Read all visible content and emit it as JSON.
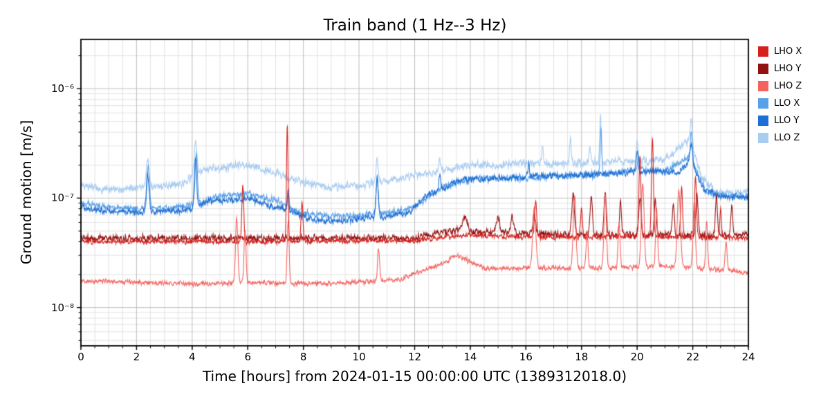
{
  "chart_data": {
    "type": "line",
    "title": "Train band (1 Hz--3 Hz)",
    "xlabel": "Time [hours] from 2024-01-15 00:00:00 UTC (1389312018.0)",
    "ylabel": "Ground motion [m/s]",
    "xlim": [
      0,
      24
    ],
    "ylog": [
      -8.35,
      -5.55
    ],
    "x_ticks": [
      0,
      2,
      4,
      6,
      8,
      10,
      12,
      14,
      16,
      18,
      20,
      22,
      24
    ],
    "x_minor_step": 0.5,
    "y_ticks": [
      {
        "v": 1e-06,
        "label": "10⁻⁶"
      },
      {
        "v": 1e-07,
        "label": "10⁻⁷"
      },
      {
        "v": 1e-08,
        "label": "10⁻⁸"
      }
    ],
    "grid": true,
    "legend_position": "outside-upper-right",
    "draw_order": [
      5,
      3,
      4,
      1,
      0,
      2
    ],
    "series": [
      {
        "name": "LHO X",
        "color": "#d6201c",
        "noise": 0.03,
        "base": [
          [
            0,
            4e-08
          ],
          [
            6,
            4e-08
          ],
          [
            12,
            4.1e-08
          ],
          [
            14,
            4.6e-08
          ],
          [
            16,
            4.4e-08
          ],
          [
            18,
            4.4e-08
          ],
          [
            20,
            4.5e-08
          ],
          [
            22,
            4.4e-08
          ],
          [
            24,
            4.3e-08
          ]
        ],
        "spikes": [
          [
            5.82,
            1.3e-07,
            0.05
          ],
          [
            7.42,
            4.6e-07,
            0.04
          ],
          [
            7.95,
            9e-08,
            0.05
          ],
          [
            16.35,
            9e-08,
            0.06
          ],
          [
            18.0,
            8e-08,
            0.05
          ],
          [
            20.1,
            2.4e-07,
            0.05
          ],
          [
            20.55,
            3.6e-07,
            0.05
          ],
          [
            21.6,
            1.2e-07,
            0.05
          ],
          [
            22.1,
            1.6e-07,
            0.05
          ],
          [
            23.0,
            8e-08,
            0.04
          ]
        ]
      },
      {
        "name": "LHO Y",
        "color": "#951010",
        "noise": 0.045,
        "base": [
          [
            0,
            4.3e-08
          ],
          [
            12,
            4.3e-08
          ],
          [
            13.6,
            5.2e-08
          ],
          [
            14.5,
            4.8e-08
          ],
          [
            16,
            4.8e-08
          ],
          [
            17,
            4.6e-08
          ],
          [
            24,
            4.6e-08
          ]
        ],
        "spikes": [
          [
            13.8,
            7e-08,
            0.1
          ],
          [
            15.0,
            6.5e-08,
            0.08
          ],
          [
            15.5,
            6.8e-08,
            0.07
          ],
          [
            16.3,
            7.5e-08,
            0.06
          ],
          [
            17.7,
            1.1e-07,
            0.07
          ],
          [
            18.35,
            1.05e-07,
            0.06
          ],
          [
            18.85,
            1.15e-07,
            0.06
          ],
          [
            19.4,
            9e-08,
            0.05
          ],
          [
            20.1,
            1e-07,
            0.06
          ],
          [
            20.65,
            9.5e-08,
            0.05
          ],
          [
            21.3,
            9e-08,
            0.05
          ],
          [
            22.15,
            1.05e-07,
            0.06
          ],
          [
            22.85,
            1e-07,
            0.05
          ],
          [
            23.4,
            8.5e-08,
            0.05
          ]
        ]
      },
      {
        "name": "LHO Z",
        "color": "#f4635f",
        "noise": 0.03,
        "base": [
          [
            0,
            1.75e-08
          ],
          [
            2,
            1.7e-08
          ],
          [
            4,
            1.65e-08
          ],
          [
            6,
            1.7e-08
          ],
          [
            8,
            1.65e-08
          ],
          [
            10,
            1.7e-08
          ],
          [
            11.5,
            1.8e-08
          ],
          [
            12.3,
            2.2e-08
          ],
          [
            13.0,
            2.5e-08
          ],
          [
            13.5,
            3e-08
          ],
          [
            14.0,
            2.6e-08
          ],
          [
            14.5,
            2.3e-08
          ],
          [
            15.5,
            2.3e-08
          ],
          [
            17,
            2.3e-08
          ],
          [
            19,
            2.3e-08
          ],
          [
            21,
            2.4e-08
          ],
          [
            23,
            2.2e-08
          ],
          [
            24,
            2.1e-08
          ]
        ],
        "spikes": [
          [
            5.6,
            6.5e-08,
            0.06
          ],
          [
            5.9,
            5e-08,
            0.05
          ],
          [
            7.45,
            6e-08,
            0.05
          ],
          [
            10.7,
            3.5e-08,
            0.05
          ],
          [
            16.3,
            8e-08,
            0.08
          ],
          [
            17.75,
            1.05e-07,
            0.07
          ],
          [
            18.2,
            5e-08,
            0.05
          ],
          [
            18.85,
            1.1e-07,
            0.06
          ],
          [
            19.35,
            6e-08,
            0.05
          ],
          [
            20.2,
            1.4e-07,
            0.07
          ],
          [
            20.7,
            8e-08,
            0.05
          ],
          [
            21.5,
            1.2e-07,
            0.08
          ],
          [
            22.05,
            9e-08,
            0.06
          ],
          [
            22.5,
            6e-08,
            0.05
          ],
          [
            23.2,
            4e-08,
            0.05
          ]
        ]
      },
      {
        "name": "LLO X",
        "color": "#58a1e8",
        "noise": 0.04,
        "base": [
          [
            0,
            9e-08
          ],
          [
            1,
            8.2e-08
          ],
          [
            2,
            8e-08
          ],
          [
            3,
            8.2e-08
          ],
          [
            4,
            8.5e-08
          ],
          [
            5,
            1.05e-07
          ],
          [
            6,
            1.1e-07
          ],
          [
            7,
            9.5e-08
          ],
          [
            8,
            7.2e-08
          ],
          [
            9,
            6.8e-08
          ],
          [
            10,
            7e-08
          ],
          [
            11,
            7.4e-08
          ],
          [
            12,
            8.2e-08
          ],
          [
            13,
            1.25e-07
          ],
          [
            14,
            1.5e-07
          ],
          [
            15,
            1.55e-07
          ],
          [
            16,
            1.5e-07
          ],
          [
            17,
            1.6e-07
          ],
          [
            18,
            1.6e-07
          ],
          [
            19,
            1.65e-07
          ],
          [
            20,
            1.85e-07
          ],
          [
            21,
            1.75e-07
          ],
          [
            21.9,
            2.4e-07
          ],
          [
            22.5,
            1.15e-07
          ],
          [
            23,
            1.05e-07
          ],
          [
            24,
            1.05e-07
          ]
        ],
        "spikes": [
          [
            2.42,
            1.9e-07,
            0.06
          ],
          [
            4.15,
            2.5e-07,
            0.06
          ],
          [
            7.45,
            1.1e-07,
            0.04
          ],
          [
            10.65,
            1.6e-07,
            0.05
          ],
          [
            18.7,
            4.2e-07,
            0.04
          ],
          [
            20.05,
            2.4e-07,
            0.05
          ],
          [
            21.95,
            4e-07,
            0.05
          ]
        ]
      },
      {
        "name": "LLO Y",
        "color": "#1e6fd5",
        "noise": 0.04,
        "base": [
          [
            0,
            8.2e-08
          ],
          [
            0.5,
            7.6e-08
          ],
          [
            2,
            7.4e-08
          ],
          [
            3,
            7.6e-08
          ],
          [
            4,
            7.8e-08
          ],
          [
            4.6,
            9.5e-08
          ],
          [
            5.5,
            9.5e-08
          ],
          [
            6,
            1e-07
          ],
          [
            6.8,
            8.5e-08
          ],
          [
            7.6,
            7.6e-08
          ],
          [
            8.2,
            6.4e-08
          ],
          [
            9,
            6.2e-08
          ],
          [
            10,
            6.4e-08
          ],
          [
            11,
            6.8e-08
          ],
          [
            11.8,
            7.2e-08
          ],
          [
            12.4,
            1.05e-07
          ],
          [
            13,
            1.2e-07
          ],
          [
            13.6,
            1.45e-07
          ],
          [
            14.5,
            1.5e-07
          ],
          [
            15.5,
            1.55e-07
          ],
          [
            16.5,
            1.6e-07
          ],
          [
            17.5,
            1.6e-07
          ],
          [
            18.5,
            1.65e-07
          ],
          [
            19.5,
            1.7e-07
          ],
          [
            20.5,
            1.75e-07
          ],
          [
            21.5,
            1.7e-07
          ],
          [
            21.9,
            2.2e-07
          ],
          [
            22.4,
            1.2e-07
          ],
          [
            23,
            1.05e-07
          ],
          [
            24,
            1e-07
          ]
        ],
        "spikes": [
          [
            2.4,
            1.7e-07,
            0.07
          ],
          [
            4.12,
            2.3e-07,
            0.06
          ],
          [
            7.45,
            1.2e-07,
            0.04
          ],
          [
            10.65,
            1.5e-07,
            0.06
          ],
          [
            12.9,
            1.6e-07,
            0.05
          ],
          [
            16.1,
            2.1e-07,
            0.04
          ],
          [
            20.0,
            2.6e-07,
            0.05
          ],
          [
            21.95,
            3.2e-07,
            0.06
          ]
        ]
      },
      {
        "name": "LLO Z",
        "color": "#a9ccf1",
        "noise": 0.05,
        "base": [
          [
            0,
            1.35e-07
          ],
          [
            0.7,
            1.2e-07
          ],
          [
            1.5,
            1.22e-07
          ],
          [
            2,
            1.25e-07
          ],
          [
            3,
            1.3e-07
          ],
          [
            3.6,
            1.35e-07
          ],
          [
            4.4,
            1.8e-07
          ],
          [
            5,
            1.9e-07
          ],
          [
            5.7,
            2e-07
          ],
          [
            6.3,
            1.9e-07
          ],
          [
            7,
            1.7e-07
          ],
          [
            7.6,
            1.5e-07
          ],
          [
            8.2,
            1.35e-07
          ],
          [
            9,
            1.25e-07
          ],
          [
            10,
            1.3e-07
          ],
          [
            11,
            1.45e-07
          ],
          [
            12,
            1.6e-07
          ],
          [
            13,
            1.8e-07
          ],
          [
            14,
            2e-07
          ],
          [
            15,
            2e-07
          ],
          [
            16,
            2.1e-07
          ],
          [
            17,
            2.05e-07
          ],
          [
            18,
            2.1e-07
          ],
          [
            19,
            2.15e-07
          ],
          [
            20,
            2.2e-07
          ],
          [
            21,
            2.25e-07
          ],
          [
            21.9,
            3.5e-07
          ],
          [
            22.3,
            1.6e-07
          ],
          [
            22.8,
            1.15e-07
          ],
          [
            23.5,
            1.1e-07
          ],
          [
            24,
            1.15e-07
          ]
        ],
        "spikes": [
          [
            2.4,
            2.3e-07,
            0.07
          ],
          [
            4.12,
            3.1e-07,
            0.07
          ],
          [
            10.65,
            2.3e-07,
            0.06
          ],
          [
            12.9,
            2.4e-07,
            0.04
          ],
          [
            16.6,
            3.2e-07,
            0.04
          ],
          [
            17.6,
            3.6e-07,
            0.04
          ],
          [
            18.3,
            3e-07,
            0.04
          ],
          [
            18.68,
            5.6e-07,
            0.04
          ],
          [
            20.0,
            3.2e-07,
            0.05
          ],
          [
            21.95,
            5.2e-07,
            0.05
          ]
        ]
      }
    ]
  }
}
